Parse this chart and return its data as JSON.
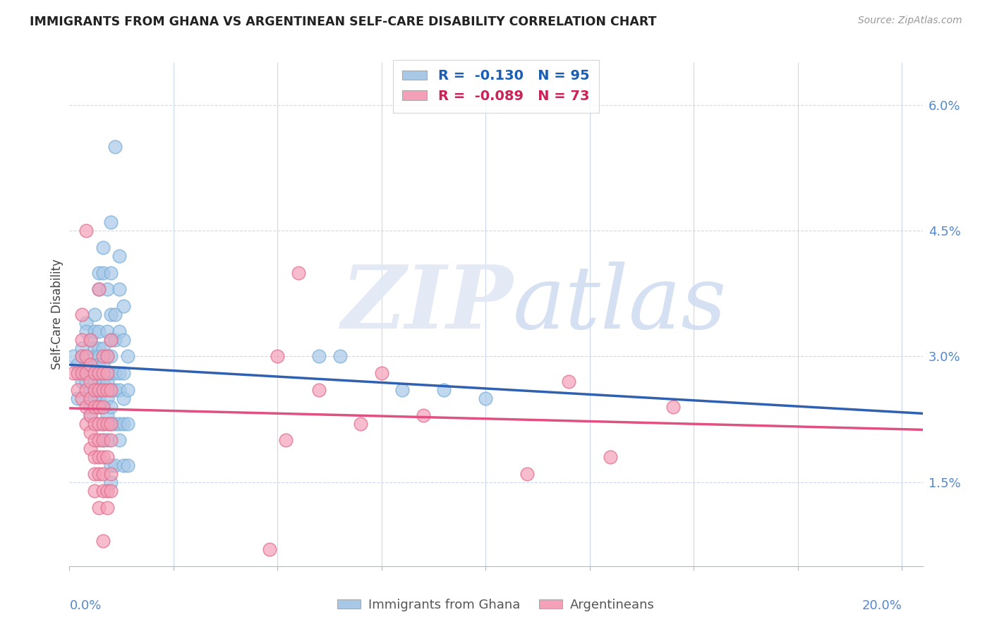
{
  "title": "IMMIGRANTS FROM GHANA VS ARGENTINEAN SELF-CARE DISABILITY CORRELATION CHART",
  "source": "Source: ZipAtlas.com",
  "ylabel": "Self-Care Disability",
  "xlim": [
    0.0,
    0.205
  ],
  "ylim": [
    0.005,
    0.065
  ],
  "right_y_ticks": [
    0.015,
    0.03,
    0.045,
    0.06
  ],
  "right_y_labels": [
    "1.5%",
    "3.0%",
    "4.5%",
    "6.0%"
  ],
  "ghana_color": "#a8c8e8",
  "ghana_edge": "#7ab0d8",
  "argentina_color": "#f4a0b8",
  "argentina_edge": "#e07090",
  "ghana_R": -0.13,
  "ghana_N": 95,
  "argentina_R": -0.089,
  "argentina_N": 73,
  "trend_blue": "#3060b0",
  "trend_pink": "#e05080",
  "watermark_color": "#dde8f5",
  "ghana_scatter": [
    [
      0.001,
      0.03
    ],
    [
      0.002,
      0.029
    ],
    [
      0.002,
      0.025
    ],
    [
      0.003,
      0.028
    ],
    [
      0.003,
      0.03
    ],
    [
      0.003,
      0.027
    ],
    [
      0.003,
      0.031
    ],
    [
      0.004,
      0.034
    ],
    [
      0.004,
      0.033
    ],
    [
      0.004,
      0.029
    ],
    [
      0.004,
      0.028
    ],
    [
      0.004,
      0.027
    ],
    [
      0.005,
      0.032
    ],
    [
      0.005,
      0.029
    ],
    [
      0.005,
      0.028
    ],
    [
      0.005,
      0.026
    ],
    [
      0.005,
      0.025
    ],
    [
      0.005,
      0.024
    ],
    [
      0.005,
      0.023
    ],
    [
      0.006,
      0.035
    ],
    [
      0.006,
      0.033
    ],
    [
      0.006,
      0.031
    ],
    [
      0.006,
      0.03
    ],
    [
      0.006,
      0.029
    ],
    [
      0.006,
      0.028
    ],
    [
      0.006,
      0.027
    ],
    [
      0.006,
      0.026
    ],
    [
      0.006,
      0.025
    ],
    [
      0.007,
      0.04
    ],
    [
      0.007,
      0.038
    ],
    [
      0.007,
      0.033
    ],
    [
      0.007,
      0.031
    ],
    [
      0.007,
      0.03
    ],
    [
      0.007,
      0.029
    ],
    [
      0.007,
      0.027
    ],
    [
      0.007,
      0.025
    ],
    [
      0.007,
      0.024
    ],
    [
      0.008,
      0.043
    ],
    [
      0.008,
      0.04
    ],
    [
      0.008,
      0.031
    ],
    [
      0.008,
      0.029
    ],
    [
      0.008,
      0.028
    ],
    [
      0.008,
      0.027
    ],
    [
      0.008,
      0.026
    ],
    [
      0.008,
      0.024
    ],
    [
      0.008,
      0.022
    ],
    [
      0.008,
      0.02
    ],
    [
      0.009,
      0.038
    ],
    [
      0.009,
      0.033
    ],
    [
      0.009,
      0.03
    ],
    [
      0.009,
      0.028
    ],
    [
      0.009,
      0.027
    ],
    [
      0.009,
      0.025
    ],
    [
      0.009,
      0.023
    ],
    [
      0.009,
      0.02
    ],
    [
      0.01,
      0.046
    ],
    [
      0.01,
      0.04
    ],
    [
      0.01,
      0.035
    ],
    [
      0.01,
      0.032
    ],
    [
      0.01,
      0.03
    ],
    [
      0.01,
      0.028
    ],
    [
      0.01,
      0.026
    ],
    [
      0.01,
      0.024
    ],
    [
      0.01,
      0.022
    ],
    [
      0.01,
      0.017
    ],
    [
      0.01,
      0.015
    ],
    [
      0.011,
      0.055
    ],
    [
      0.011,
      0.035
    ],
    [
      0.011,
      0.032
    ],
    [
      0.011,
      0.028
    ],
    [
      0.011,
      0.026
    ],
    [
      0.011,
      0.022
    ],
    [
      0.011,
      0.017
    ],
    [
      0.012,
      0.042
    ],
    [
      0.012,
      0.038
    ],
    [
      0.012,
      0.033
    ],
    [
      0.012,
      0.028
    ],
    [
      0.012,
      0.026
    ],
    [
      0.012,
      0.022
    ],
    [
      0.012,
      0.02
    ],
    [
      0.013,
      0.036
    ],
    [
      0.013,
      0.032
    ],
    [
      0.013,
      0.028
    ],
    [
      0.013,
      0.025
    ],
    [
      0.013,
      0.022
    ],
    [
      0.013,
      0.017
    ],
    [
      0.014,
      0.03
    ],
    [
      0.014,
      0.026
    ],
    [
      0.014,
      0.022
    ],
    [
      0.014,
      0.017
    ],
    [
      0.08,
      0.026
    ],
    [
      0.09,
      0.026
    ],
    [
      0.06,
      0.03
    ],
    [
      0.065,
      0.03
    ],
    [
      0.1,
      0.025
    ]
  ],
  "argentina_scatter": [
    [
      0.001,
      0.028
    ],
    [
      0.002,
      0.028
    ],
    [
      0.002,
      0.026
    ],
    [
      0.003,
      0.035
    ],
    [
      0.003,
      0.032
    ],
    [
      0.003,
      0.03
    ],
    [
      0.003,
      0.028
    ],
    [
      0.003,
      0.025
    ],
    [
      0.004,
      0.045
    ],
    [
      0.004,
      0.03
    ],
    [
      0.004,
      0.028
    ],
    [
      0.004,
      0.026
    ],
    [
      0.004,
      0.024
    ],
    [
      0.004,
      0.022
    ],
    [
      0.005,
      0.032
    ],
    [
      0.005,
      0.029
    ],
    [
      0.005,
      0.027
    ],
    [
      0.005,
      0.025
    ],
    [
      0.005,
      0.023
    ],
    [
      0.005,
      0.021
    ],
    [
      0.005,
      0.019
    ],
    [
      0.006,
      0.028
    ],
    [
      0.006,
      0.026
    ],
    [
      0.006,
      0.024
    ],
    [
      0.006,
      0.022
    ],
    [
      0.006,
      0.02
    ],
    [
      0.006,
      0.018
    ],
    [
      0.006,
      0.016
    ],
    [
      0.006,
      0.014
    ],
    [
      0.007,
      0.038
    ],
    [
      0.007,
      0.028
    ],
    [
      0.007,
      0.026
    ],
    [
      0.007,
      0.024
    ],
    [
      0.007,
      0.022
    ],
    [
      0.007,
      0.02
    ],
    [
      0.007,
      0.018
    ],
    [
      0.007,
      0.016
    ],
    [
      0.007,
      0.012
    ],
    [
      0.008,
      0.03
    ],
    [
      0.008,
      0.028
    ],
    [
      0.008,
      0.026
    ],
    [
      0.008,
      0.024
    ],
    [
      0.008,
      0.022
    ],
    [
      0.008,
      0.02
    ],
    [
      0.008,
      0.018
    ],
    [
      0.008,
      0.016
    ],
    [
      0.008,
      0.014
    ],
    [
      0.008,
      0.008
    ],
    [
      0.009,
      0.03
    ],
    [
      0.009,
      0.028
    ],
    [
      0.009,
      0.026
    ],
    [
      0.009,
      0.022
    ],
    [
      0.009,
      0.018
    ],
    [
      0.009,
      0.014
    ],
    [
      0.009,
      0.012
    ],
    [
      0.01,
      0.032
    ],
    [
      0.01,
      0.026
    ],
    [
      0.01,
      0.022
    ],
    [
      0.01,
      0.02
    ],
    [
      0.01,
      0.016
    ],
    [
      0.01,
      0.014
    ],
    [
      0.055,
      0.04
    ],
    [
      0.06,
      0.026
    ],
    [
      0.075,
      0.028
    ],
    [
      0.085,
      0.023
    ],
    [
      0.12,
      0.027
    ],
    [
      0.13,
      0.018
    ],
    [
      0.145,
      0.024
    ],
    [
      0.11,
      0.016
    ],
    [
      0.07,
      0.022
    ],
    [
      0.05,
      0.03
    ],
    [
      0.052,
      0.02
    ],
    [
      0.048,
      0.007
    ]
  ]
}
